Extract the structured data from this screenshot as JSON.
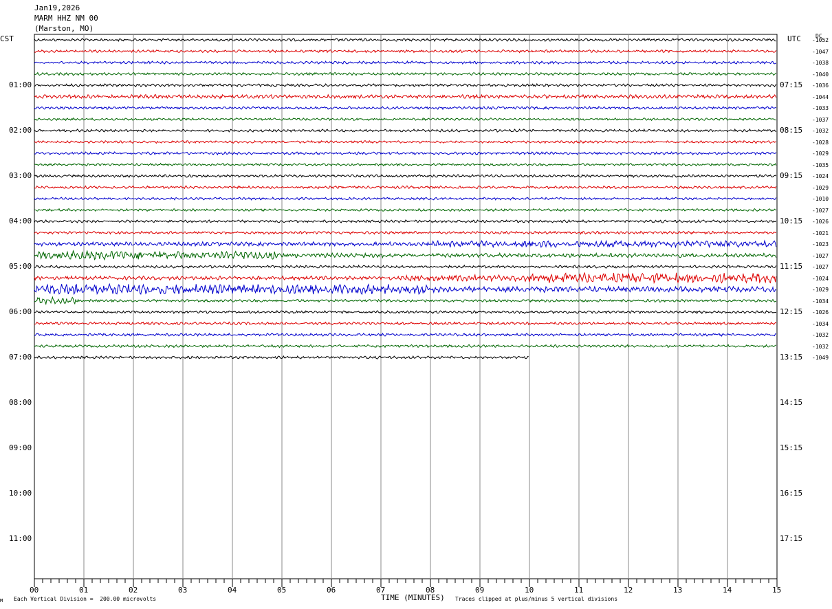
{
  "header": {
    "date": "Jan19,2026",
    "station": "MARM HHZ NM 00",
    "location": "(Marston, MO)"
  },
  "left_zone": "CST",
  "right_zone": "UTC",
  "dc_header": "DC",
  "footer": {
    "scale_note": "Each Vertical Division =  200.00 microvolts",
    "xlabel": "TIME (MINUTES)",
    "clip_note": "Traces clipped at plus/minus 5 vertical divisions",
    "corner_mark": "M"
  },
  "colors": {
    "trace_cycle": [
      "#000000",
      "#dd0000",
      "#0000cc",
      "#006600"
    ],
    "grid": "#888888"
  },
  "chart_data": {
    "type": "line",
    "title": "MARM HHZ NM 00 (Marston, MO)",
    "xlabel": "TIME (MINUTES)",
    "xlim": [
      0,
      15
    ],
    "x_ticks": [
      "00",
      "01",
      "02",
      "03",
      "04",
      "05",
      "06",
      "07",
      "08",
      "09",
      "10",
      "11",
      "12",
      "13",
      "14",
      "15"
    ],
    "hours_local": [
      "01:00",
      "02:00",
      "03:00",
      "04:00",
      "05:00",
      "06:00",
      "07:00",
      "08:00",
      "09:00",
      "10:00",
      "11:00"
    ],
    "hours_utc": [
      "07:15",
      "08:15",
      "09:15",
      "10:15",
      "11:15",
      "12:15",
      "13:15",
      "14:15",
      "15:15",
      "16:15",
      "17:15"
    ],
    "rows_per_hour": 4,
    "total_rows": 48,
    "traces": [
      {
        "dc": "-1052",
        "amp": 1.0
      },
      {
        "dc": "-1047",
        "amp": 1.0
      },
      {
        "dc": "-1038",
        "amp": 1.0
      },
      {
        "dc": "-1040",
        "amp": 1.0
      },
      {
        "dc": "-1036",
        "amp": 1.0
      },
      {
        "dc": "-1044",
        "amp": 1.4
      },
      {
        "dc": "-1033",
        "amp": 1.0
      },
      {
        "dc": "-1037",
        "amp": 0.9
      },
      {
        "dc": "-1032",
        "amp": 1.0
      },
      {
        "dc": "-1028",
        "amp": 0.9
      },
      {
        "dc": "-1029",
        "amp": 1.0
      },
      {
        "dc": "-1035",
        "amp": 0.9
      },
      {
        "dc": "-1024",
        "amp": 1.0
      },
      {
        "dc": "-1029",
        "amp": 1.0
      },
      {
        "dc": "-1010",
        "amp": 0.9
      },
      {
        "dc": "-1027",
        "amp": 0.9
      },
      {
        "dc": "-1026",
        "amp": 1.0
      },
      {
        "dc": "-1021",
        "amp": 1.0
      },
      {
        "dc": "-1023",
        "amp": 2.2
      },
      {
        "dc": "-1027",
        "amp": 3.0
      },
      {
        "dc": "-1027",
        "amp": 1.0
      },
      {
        "dc": "-1024",
        "amp": 2.6
      },
      {
        "dc": "-1029",
        "amp": 3.6
      },
      {
        "dc": "-1034",
        "amp": 1.2
      },
      {
        "dc": "-1026",
        "amp": 1.0
      },
      {
        "dc": "-1034",
        "amp": 1.0
      },
      {
        "dc": "-1032",
        "amp": 1.0
      },
      {
        "dc": "-1032",
        "amp": 1.0
      },
      {
        "dc": "-1049",
        "amp": 1.0,
        "end_minute": 10
      }
    ]
  }
}
